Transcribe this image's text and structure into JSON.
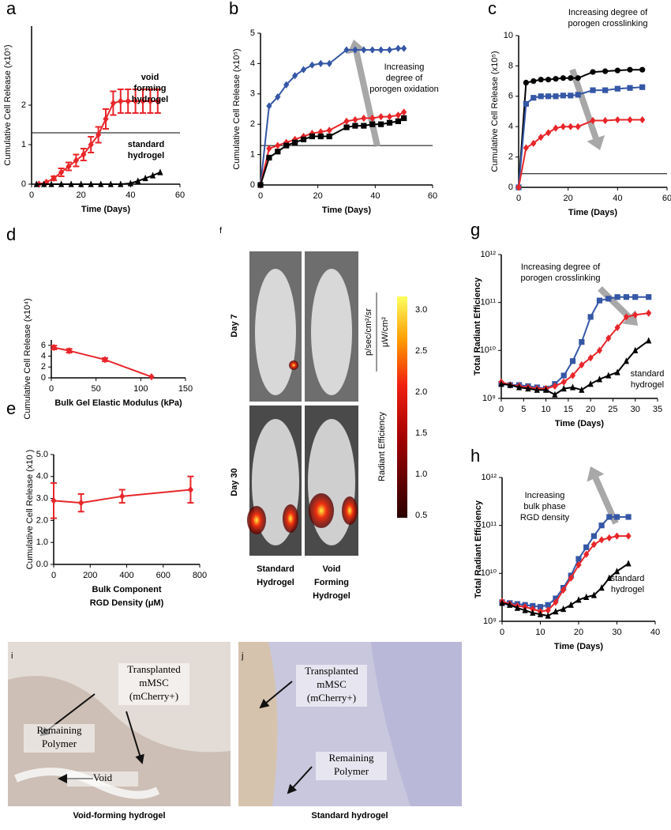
{
  "chart_data": [
    {
      "type": "line",
      "label": "a",
      "ylabel": "Cumulative Cell Release (x10⁵)",
      "xlabel": "Time (Days)",
      "xlim": [
        0,
        60
      ],
      "xticks": [
        0,
        20,
        40,
        60
      ],
      "ylim": [
        0,
        4
      ],
      "yticks": [
        0,
        1,
        2
      ],
      "hlines": [
        1.3
      ],
      "series": [
        {
          "name": "void forming hydrogel",
          "color": "#e8262a",
          "marker": "diamond",
          "x": [
            3,
            6,
            9,
            12,
            15,
            18,
            21,
            24,
            27,
            30,
            33,
            36,
            39,
            42,
            45,
            48,
            51
          ],
          "values": [
            0,
            0.05,
            0.15,
            0.3,
            0.45,
            0.6,
            0.75,
            1.0,
            1.25,
            1.65,
            2.05,
            2.1,
            2.1,
            2.1,
            2.1,
            2.1,
            2.1
          ],
          "errors": [
            0,
            0,
            0.05,
            0.1,
            0.1,
            0.15,
            0.15,
            0.2,
            0.2,
            0.25,
            0.3,
            0.3,
            0.3,
            0.3,
            0.3,
            0.3,
            0.3
          ]
        },
        {
          "name": "standard hydrogel",
          "color": "#000000",
          "marker": "triangle",
          "x": [
            2,
            5,
            8,
            12,
            16,
            20,
            24,
            28,
            32,
            36,
            40,
            43,
            46,
            49,
            52
          ],
          "values": [
            0,
            0,
            0,
            0,
            0,
            0,
            0,
            0,
            0,
            0,
            0.02,
            0.08,
            0.15,
            0.22,
            0.3
          ]
        }
      ],
      "annotations": [
        {
          "lines": [
            "void",
            "forming",
            "hydrogel"
          ],
          "color": "#e8262a"
        },
        {
          "lines": [
            "standard",
            "hydrogel"
          ],
          "color": "#000000"
        }
      ]
    },
    {
      "type": "line",
      "label": "b",
      "ylabel": "Cumulative Cell Release (x10⁵)",
      "xlabel": "Time (Days)",
      "xlim": [
        0,
        60
      ],
      "xticks": [
        0,
        20,
        40,
        60
      ],
      "ylim": [
        0,
        5
      ],
      "yticks": [
        0,
        1,
        2,
        3,
        4,
        5
      ],
      "hlines": [
        1.3
      ],
      "x": [
        0,
        3,
        6,
        9,
        12,
        15,
        18,
        21,
        24,
        30,
        33,
        36,
        39,
        42,
        45,
        48,
        50
      ],
      "series": [
        {
          "color": "#3557a6",
          "marker": "diamond",
          "values": [
            0,
            2.6,
            2.9,
            3.3,
            3.6,
            3.8,
            3.95,
            4.0,
            4.0,
            4.45,
            4.45,
            4.45,
            4.45,
            4.45,
            4.45,
            4.5,
            4.5
          ]
        },
        {
          "color": "#e8262a",
          "marker": "diamond",
          "values": [
            0,
            1.2,
            1.3,
            1.4,
            1.5,
            1.6,
            1.7,
            1.75,
            1.8,
            2.1,
            2.15,
            2.2,
            2.2,
            2.25,
            2.25,
            2.3,
            2.4
          ]
        },
        {
          "color": "#000000",
          "marker": "square",
          "values": [
            0,
            0.9,
            1.1,
            1.3,
            1.4,
            1.5,
            1.6,
            1.6,
            1.6,
            1.9,
            1.95,
            1.95,
            2.0,
            2.0,
            2.05,
            2.1,
            2.2
          ]
        }
      ],
      "annotations": [
        {
          "lines": [
            "Increasing",
            "degree of",
            "porogen oxidation"
          ],
          "color": "#555555"
        }
      ]
    },
    {
      "type": "line",
      "label": "c",
      "ylabel": "Cumulative Cell Release (x10⁵)",
      "xlabel": "Time (Days)",
      "xlim": [
        0,
        60
      ],
      "xticks": [
        0,
        20,
        40,
        60
      ],
      "ylim": [
        0,
        10
      ],
      "yticks": [
        0,
        2,
        4,
        6,
        8,
        10
      ],
      "hlines": [
        0.9
      ],
      "x": [
        0,
        3,
        6,
        9,
        12,
        15,
        18,
        21,
        24,
        30,
        35,
        40,
        45,
        50
      ],
      "series": [
        {
          "color": "#000000",
          "marker": "circle",
          "values": [
            0,
            6.9,
            7.0,
            7.1,
            7.1,
            7.15,
            7.2,
            7.2,
            7.2,
            7.6,
            7.65,
            7.7,
            7.75,
            7.75
          ]
        },
        {
          "color": "#3557a6",
          "marker": "square",
          "values": [
            0,
            5.5,
            5.9,
            6.0,
            6.0,
            6.0,
            6.05,
            6.05,
            6.1,
            6.4,
            6.4,
            6.5,
            6.55,
            6.6
          ]
        },
        {
          "color": "#e8262a",
          "marker": "diamond",
          "values": [
            0,
            2.6,
            2.9,
            3.3,
            3.6,
            3.9,
            4.0,
            4.0,
            4.0,
            4.4,
            4.4,
            4.45,
            4.45,
            4.45
          ]
        }
      ],
      "annotations": [
        {
          "lines": [
            "Increasing degree of",
            "porogen crosslinking"
          ],
          "color": "#555555"
        }
      ]
    },
    {
      "type": "line",
      "label": "d",
      "ylabel": "Cumulative Cell Release (x10⁴)",
      "xlabel": "Bulk Gel Elastic Modulus (kPa)",
      "xlim": [
        0,
        150
      ],
      "xticks": [
        0,
        50,
        100,
        150
      ],
      "ylim": [
        0,
        7
      ],
      "yticks": [
        0,
        2,
        4,
        6
      ],
      "x": [
        3,
        20,
        60,
        112
      ],
      "series": [
        {
          "color": "#e8262a",
          "marker": "diamond",
          "values": [
            5.6,
            5.0,
            3.35,
            0.2
          ],
          "errors": [
            0.35,
            0.35,
            0.3,
            0
          ]
        }
      ]
    },
    {
      "type": "line",
      "label": "e",
      "ylabel": "Cumulative Cell Release (x10 )",
      "xlabel": [
        "Bulk Component",
        "RGD Density (μM)"
      ],
      "xlim": [
        0,
        800
      ],
      "xticks": [
        0,
        200,
        400,
        600,
        800
      ],
      "ylim": [
        0,
        5
      ],
      "yticks": [
        {
          "value": 0,
          "label": "0.0"
        },
        {
          "value": 1,
          "label": "1.0"
        },
        {
          "value": 2,
          "label": "2.0"
        },
        {
          "value": 3,
          "label": "3.0"
        },
        {
          "value": 4,
          "label": "4.0"
        },
        {
          "value": 5,
          "label": "5.0"
        }
      ],
      "x": [
        0,
        150,
        375,
        750
      ],
      "series": [
        {
          "color": "#e8262a",
          "marker": "diamond",
          "values": [
            2.9,
            2.8,
            3.1,
            3.4
          ],
          "errors": [
            0.8,
            0.4,
            0.3,
            0.6
          ]
        }
      ]
    },
    {
      "type": "line",
      "label": "g",
      "ylabel": "Total Radiant Efficiency",
      "xlabel": "Time (Days)",
      "log_y": true,
      "xlim": [
        0,
        35
      ],
      "xticks": [
        0,
        5,
        10,
        15,
        20,
        25,
        30,
        35
      ],
      "ylim": [
        1000000000,
        1000000000000
      ],
      "yticks": [
        {
          "value": 1000000000,
          "label": "10⁹"
        },
        {
          "value": 10000000000,
          "label": "10¹⁰"
        },
        {
          "value": 100000000000,
          "label": "10¹¹"
        },
        {
          "value": 1000000000000,
          "label": "10¹²"
        }
      ],
      "x": [
        0,
        2,
        4,
        6,
        8,
        10,
        12,
        14,
        16,
        18,
        20,
        22,
        24,
        26,
        28,
        30,
        33
      ],
      "series": [
        {
          "color": "#3557a6",
          "marker": "square",
          "values": [
            2000000000,
            1900000000,
            1900000000,
            1800000000,
            1700000000,
            1600000000,
            2000000000,
            3000000000,
            6000000000,
            15000000000,
            50000000000,
            110000000000,
            120000000000,
            130000000000,
            130000000000,
            130000000000,
            130000000000
          ]
        },
        {
          "color": "#e8262a",
          "marker": "diamond",
          "values": [
            2200000000,
            1900000000,
            1800000000,
            1700000000,
            1600000000,
            1600000000,
            1800000000,
            2200000000,
            3000000000,
            5000000000,
            7000000000,
            10000000000,
            18000000000,
            30000000000,
            50000000000,
            55000000000,
            60000000000
          ]
        },
        {
          "color": "#000000",
          "marker": "triangle",
          "values": [
            2000000000,
            1900000000,
            1700000000,
            1600000000,
            1500000000,
            1500000000,
            1200000000,
            1600000000,
            1700000000,
            1500000000,
            2000000000,
            2500000000,
            3000000000,
            3500000000,
            6000000000,
            10000000000,
            16000000000
          ]
        }
      ],
      "annotations": [
        {
          "lines": [
            "Increasing degree of",
            "porogen crosslinking"
          ],
          "color": "#555555"
        },
        {
          "lines": [
            "standard",
            "hydrogel"
          ],
          "color": "#333333"
        }
      ]
    },
    {
      "type": "line",
      "label": "h",
      "ylabel": "Total Radiant Efficiency",
      "xlabel": "Time (Days)",
      "log_y": true,
      "xlim": [
        0,
        40
      ],
      "xticks": [
        0,
        10,
        20,
        30,
        40
      ],
      "ylim": [
        1000000000,
        1000000000000
      ],
      "yticks": [
        {
          "value": 1000000000,
          "label": "10⁹"
        },
        {
          "value": 10000000000,
          "label": "10¹⁰"
        },
        {
          "value": 100000000000,
          "label": "10¹¹"
        },
        {
          "value": 1000000000000,
          "label": "10¹²"
        }
      ],
      "x": [
        0,
        2,
        4,
        6,
        8,
        10,
        12,
        14,
        16,
        18,
        20,
        22,
        24,
        26,
        28,
        30,
        33
      ],
      "series": [
        {
          "color": "#3557a6",
          "marker": "square",
          "values": [
            2500000000,
            2400000000,
            2300000000,
            2200000000,
            2100000000,
            2000000000,
            2200000000,
            3000000000,
            5000000000,
            9000000000,
            20000000000,
            35000000000,
            60000000000,
            100000000000,
            150000000000,
            150000000000,
            150000000000
          ]
        },
        {
          "color": "#e8262a",
          "marker": "diamond",
          "values": [
            2600000000,
            2300000000,
            2100000000,
            2000000000,
            1800000000,
            1600000000,
            1700000000,
            2500000000,
            4500000000,
            8000000000,
            15000000000,
            25000000000,
            40000000000,
            50000000000,
            55000000000,
            60000000000,
            60000000000
          ]
        },
        {
          "color": "#000000",
          "marker": "triangle",
          "values": [
            2400000000,
            2200000000,
            1900000000,
            1700000000,
            1500000000,
            1400000000,
            1300000000,
            1600000000,
            1800000000,
            2200000000,
            2800000000,
            3200000000,
            3500000000,
            5000000000,
            8000000000,
            11000000000,
            16000000000
          ]
        }
      ],
      "annotations": [
        {
          "lines": [
            "Increasing",
            "bulk phase",
            "RGD density"
          ],
          "color": "#333333"
        },
        {
          "lines": [
            "standard",
            "hydrogel"
          ],
          "color": "#333333"
        }
      ]
    }
  ],
  "panel_f": {
    "label": "f",
    "rows": [
      "Day 7",
      "Day 30"
    ],
    "columns": [
      [
        "Standard",
        "Hydrogel"
      ],
      [
        "Void",
        "Forming",
        "Hydrogel"
      ]
    ],
    "colorbar": {
      "title": "Radiant Efficiency",
      "units": [
        "p/sec/cm²/sr",
        "μW/cm²"
      ],
      "ticks": [
        "3.0",
        "2.5",
        "2.0",
        "1.5",
        "1.0",
        "0.5"
      ]
    }
  },
  "histology": [
    {
      "label": "i",
      "caption": "Void-forming hydrogel",
      "notes": [
        [
          "Transplanted",
          "mMSC",
          "(mCherry+)"
        ],
        [
          "Remaining",
          "Polymer"
        ],
        [
          "Void"
        ]
      ]
    },
    {
      "label": "j",
      "caption": "Standard hydrogel",
      "notes": [
        [
          "Transplanted",
          "mMSC",
          "(mCherry+)"
        ],
        [
          "Remaining",
          "Polymer"
        ]
      ]
    }
  ]
}
